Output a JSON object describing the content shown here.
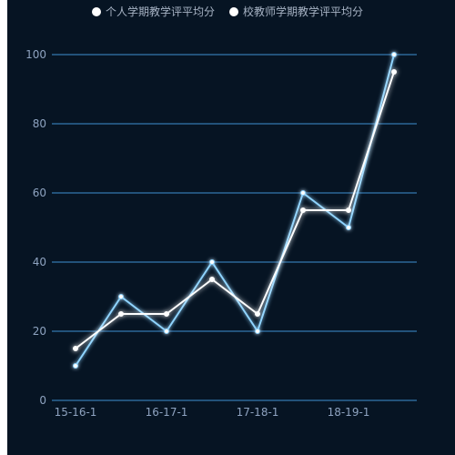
{
  "colors": {
    "background": "#061423",
    "grid": "#3f8fd0",
    "series_personal": "#8fd4ff",
    "series_school": "#ffffff",
    "tick_text": "#8ea3c0"
  },
  "chart_data": {
    "type": "line",
    "legend_placement": "top-center",
    "grid": true,
    "x_labels": [
      "15-16-1",
      "16-17-1",
      "17-18-1",
      "18-19-1"
    ],
    "x_points": 8,
    "ylim": [
      0,
      100
    ],
    "yticks": [
      0,
      20,
      40,
      60,
      80,
      100
    ],
    "series": [
      {
        "name": "个人学期教学评平均分",
        "color": "#8fd4ff",
        "values": [
          10,
          30,
          20,
          40,
          20,
          60,
          50,
          100
        ]
      },
      {
        "name": "校教师学期教学评平均分",
        "color": "#ffffff",
        "values": [
          15,
          25,
          25,
          35,
          25,
          55,
          55,
          95
        ]
      }
    ]
  }
}
